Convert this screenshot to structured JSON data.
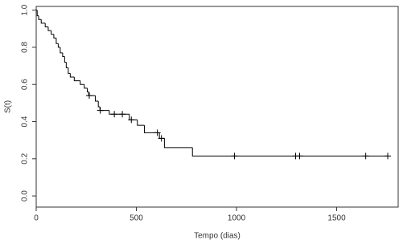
{
  "chart_data": {
    "type": "step",
    "xlabel": "Tempo (dias)",
    "ylabel": "S(t)",
    "xlim": [
      0,
      1807
    ],
    "ylim": [
      -0.06,
      1.02
    ],
    "xticks": [
      0,
      500,
      1000,
      1500
    ],
    "yticks": [
      {
        "value": 0,
        "label": "0.0"
      },
      0.2,
      0.4,
      0.6,
      0.8,
      {
        "value": 1,
        "label": "1.0"
      }
    ],
    "color": "#000000",
    "series": [
      {
        "x": [
          0,
          5,
          12,
          25,
          45,
          60,
          75,
          88,
          100,
          110,
          120,
          132,
          142,
          150,
          160,
          170,
          190,
          220,
          240,
          255,
          262,
          295,
          310,
          318,
          365,
          465,
          505,
          540,
          615,
          640,
          780,
          1755
        ],
        "values": [
          1.0,
          0.97,
          0.95,
          0.93,
          0.91,
          0.89,
          0.87,
          0.85,
          0.82,
          0.8,
          0.77,
          0.75,
          0.72,
          0.69,
          0.66,
          0.64,
          0.62,
          0.6,
          0.58,
          0.56,
          0.54,
          0.51,
          0.48,
          0.46,
          0.44,
          0.41,
          0.38,
          0.34,
          0.31,
          0.26,
          0.215,
          0.215
        ]
      },
      {
        "marker": "+",
        "x": [
          265,
          320,
          390,
          430,
          475,
          605,
          625,
          990,
          1295,
          1315,
          1645,
          1755
        ],
        "values": [
          0.54,
          0.46,
          0.44,
          0.44,
          0.41,
          0.34,
          0.31,
          0.215,
          0.215,
          0.215,
          0.215,
          0.215
        ]
      }
    ]
  }
}
